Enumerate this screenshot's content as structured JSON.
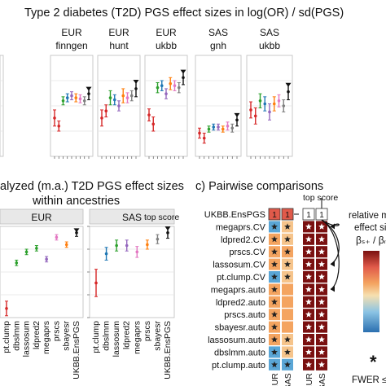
{
  "figure": {
    "top_title": "Type 2 diabetes (T2D) PGS effect sizes in log(OR) / sd(PGS)",
    "panel_b_title_line1": "alyzed (m.a.) T2D PGS effect sizes",
    "panel_b_title_line2": "within ancestries",
    "panel_c_title": "c)  Pairwise comparisons",
    "top_score_label_b": "top score",
    "top_score_label_c": "top score",
    "legend_title_line1": "relative m",
    "legend_title_line2": "effect si",
    "legend_formula": "βₛ₊ / βₙ",
    "fwer_label": "FWER ≤",
    "fwer_star": "*"
  },
  "colors": {
    "red": "#d62728",
    "orange": "#ff7f0e",
    "green": "#2ca02c",
    "blue": "#1f77b4",
    "purple": "#9467bd",
    "pink": "#e377c2",
    "gray": "#7f7f7f",
    "black": "#111111",
    "cell_dark": "#7a1010",
    "cell_orange": "#f4a460",
    "cell_light": "#f6c48b",
    "cell_blue": "#5aa6d6",
    "cell_top": "#e05a4a"
  },
  "chart_data": [
    {
      "type": "scatter",
      "panel": "top",
      "strips": [
        {
          "id": "s0",
          "line1": "",
          "line2": ""
        },
        {
          "id": "s1",
          "line1": "EUR",
          "line2": "finngen"
        },
        {
          "id": "s2",
          "line1": "EUR",
          "line2": "hunt"
        },
        {
          "id": "s3",
          "line1": "EUR",
          "line2": "ukbb"
        },
        {
          "id": "s4",
          "line1": "SAS",
          "line2": "gnh"
        },
        {
          "id": "s5",
          "line1": "SAS",
          "line2": "ukbb"
        }
      ],
      "ylim": [
        0,
        1
      ],
      "points": [
        [],
        [
          [
            0.38,
            0.08
          ],
          [
            0.3,
            0.05
          ],
          [
            0.55,
            0.04
          ],
          [
            0.58,
            0.04
          ],
          [
            0.6,
            0.04
          ],
          [
            0.58,
            0.04
          ],
          [
            0.57,
            0.04
          ],
          [
            0.55,
            0.04
          ],
          [
            0.62,
            0.06
          ]
        ],
        [
          [
            0.38,
            0.08
          ],
          [
            0.45,
            0.06
          ],
          [
            0.58,
            0.07
          ],
          [
            0.56,
            0.05
          ],
          [
            0.5,
            0.05
          ],
          [
            0.6,
            0.07
          ],
          [
            0.58,
            0.05
          ],
          [
            0.6,
            0.05
          ],
          [
            0.67,
            0.08
          ]
        ],
        [
          [
            0.41,
            0.06
          ],
          [
            0.32,
            0.07
          ],
          [
            0.68,
            0.05
          ],
          [
            0.7,
            0.05
          ],
          [
            0.62,
            0.05
          ],
          [
            0.72,
            0.06
          ],
          [
            0.7,
            0.05
          ],
          [
            0.68,
            0.05
          ],
          [
            0.78,
            0.07
          ]
        ],
        [
          [
            0.23,
            0.05
          ],
          [
            0.18,
            0.05
          ],
          [
            0.27,
            0.03
          ],
          [
            0.29,
            0.03
          ],
          [
            0.29,
            0.03
          ],
          [
            0.27,
            0.03
          ],
          [
            0.3,
            0.04
          ],
          [
            0.28,
            0.04
          ],
          [
            0.36,
            0.06
          ]
        ],
        [
          [
            0.46,
            0.08
          ],
          [
            0.4,
            0.08
          ],
          [
            0.55,
            0.07
          ],
          [
            0.52,
            0.07
          ],
          [
            0.44,
            0.08
          ],
          [
            0.52,
            0.07
          ],
          [
            0.55,
            0.06
          ],
          [
            0.5,
            0.06
          ],
          [
            0.64,
            0.08
          ]
        ]
      ]
    },
    {
      "type": "scatter",
      "panel": "b",
      "strips": [
        {
          "id": "b0",
          "line1": "EUR"
        },
        {
          "id": "b1",
          "line1": "SAS"
        }
      ],
      "categories": [
        "pt.clump",
        "dbslmm",
        "lassosum",
        "ldpred2",
        "megaprs",
        "prscs",
        "sbayesr",
        "UKBB.EnsPGS"
      ],
      "ylim": [
        0,
        1
      ],
      "series": [
        {
          "panel": 0,
          "points": [
            [
              0.1,
              0.08
            ],
            [
              0.6,
              0.03
            ],
            [
              0.72,
              0.03
            ],
            [
              0.76,
              0.03
            ],
            [
              0.64,
              0.03
            ],
            [
              0.88,
              0.03
            ],
            [
              0.8,
              0.03
            ],
            [
              0.93,
              0.04
            ]
          ]
        },
        {
          "panel": 1,
          "points": [
            [
              0.38,
              0.15
            ],
            [
              0.7,
              0.07
            ],
            [
              0.79,
              0.06
            ],
            [
              0.79,
              0.06
            ],
            [
              0.72,
              0.06
            ],
            [
              0.8,
              0.05
            ],
            [
              0.86,
              0.05
            ],
            [
              0.93,
              0.06
            ]
          ]
        }
      ]
    },
    {
      "type": "table",
      "panel": "c",
      "rows": [
        "UKBB.EnsPGS",
        "megaprs.CV",
        "ldpred2.CV",
        "prscs.CV",
        "lassosum.CV",
        "pt.clump.CV",
        "megaprs.auto",
        "ldpred2.auto",
        "prscs.auto",
        "sbayesr.auto",
        "lassosum.auto",
        "dbslmm.auto",
        "pt.clump.auto"
      ],
      "columns": [
        "EUR",
        "SAS",
        "EUR",
        "SAS"
      ],
      "header_values": [
        "1",
        "1",
        "1",
        "1"
      ],
      "cells": [
        [
          "star_blue",
          "star_light",
          "star_dark",
          "star_dark"
        ],
        [
          "star_orange",
          "star_light",
          "star_dark",
          "star_dark"
        ],
        [
          "star_orange",
          "star_orange",
          "star_dark",
          "star_dark"
        ],
        [
          "star_orange",
          "star_light",
          "star_dark",
          "star_dark"
        ],
        [
          "star_blue",
          "star_light",
          "star_dark",
          "star_dark"
        ],
        [
          "star_orange",
          "orange",
          "star_dark",
          "star_dark"
        ],
        [
          "star_orange",
          "orange",
          "star_dark",
          "star_dark"
        ],
        [
          "star_orange",
          "orange",
          "star_dark",
          "star_dark"
        ],
        [
          "star_orange",
          "orange",
          "star_dark",
          "star_dark"
        ],
        [
          "star_orange",
          "star_light",
          "star_dark",
          "star_dark"
        ],
        [
          "star_blue",
          "star_light",
          "star_dark",
          "star_dark"
        ],
        [
          "star_blue",
          "star_blue",
          "star_dark",
          "star_dark"
        ]
      ]
    }
  ]
}
